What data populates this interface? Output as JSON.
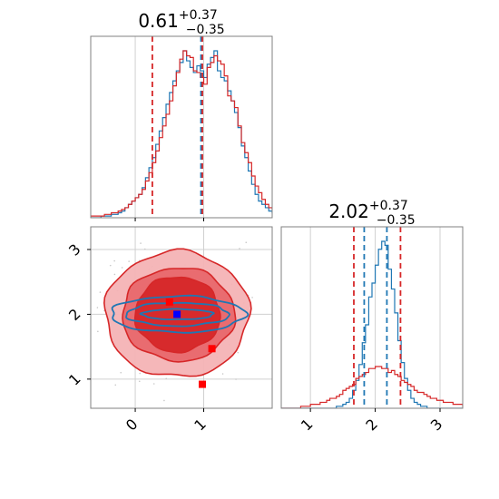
{
  "chart_data": {
    "type": "corner",
    "grid": true,
    "colors": {
      "red": "#d62728",
      "red_mid": "#e8676c",
      "red_light": "#f4b3b5",
      "blue": "#1f77b4",
      "marker_blue": "#0000ff",
      "marker_red": "#ff0000",
      "frame": "#808080",
      "grid": "#d0d0d0"
    },
    "param1": {
      "title_median": "0.61",
      "title_plus": "+0.37",
      "title_minus": "−0.35",
      "range": [
        -0.65,
        2.0
      ],
      "ticks": [
        0,
        1
      ],
      "tick_labels": [
        "0",
        "1"
      ],
      "red_hist": {
        "x0": -0.65,
        "bin": 0.05,
        "counts": [
          1,
          1,
          1,
          1,
          2,
          2,
          3,
          3,
          4,
          5,
          6,
          8,
          10,
          12,
          14,
          17,
          22,
          27,
          33,
          40,
          48,
          55,
          62,
          70,
          79,
          87,
          95,
          100,
          97,
          96,
          88,
          87,
          84,
          80,
          90,
          93,
          97,
          94,
          92,
          85,
          73,
          70,
          66,
          55,
          45,
          39,
          33,
          25,
          19,
          15,
          11,
          8,
          6,
          5,
          4,
          3,
          2,
          2,
          1,
          1
        ]
      },
      "blue_hist": {
        "x0": -0.65,
        "bin": 0.05,
        "counts": [
          0,
          0,
          0,
          1,
          1,
          1,
          2,
          2,
          3,
          4,
          6,
          8,
          10,
          12,
          14,
          18,
          24,
          30,
          36,
          44,
          52,
          60,
          68,
          75,
          82,
          88,
          93,
          100,
          94,
          90,
          87,
          91,
          88,
          84,
          92,
          96,
          100,
          88,
          84,
          82,
          76,
          70,
          63,
          54,
          43,
          36,
          28,
          20,
          14,
          10,
          8,
          6,
          4,
          3,
          2,
          1,
          1,
          0,
          0,
          0
        ]
      },
      "red_lines": [
        0.25,
        0.98
      ],
      "blue_lines": [
        0.96
      ]
    },
    "param2": {
      "title_median": "2.02",
      "title_plus": "+0.37",
      "title_minus": "−0.35",
      "range": [
        0.55,
        3.35
      ],
      "ticks": [
        1,
        2,
        3
      ],
      "tick_labels": [
        "1",
        "2",
        "3"
      ],
      "red_hist": {
        "x0": 0.55,
        "bin": 0.05,
        "counts": [
          0,
          0,
          0,
          0,
          0,
          0,
          1,
          1,
          1,
          2,
          2,
          2,
          3,
          3,
          4,
          5,
          5,
          6,
          7,
          9,
          10,
          11,
          12,
          15,
          16,
          17,
          18,
          20,
          20,
          21,
          21,
          20,
          20,
          18,
          19,
          17,
          16,
          14,
          13,
          12,
          11,
          9,
          8,
          8,
          7,
          6,
          5,
          5,
          4,
          4,
          3,
          3,
          3,
          2,
          2,
          2,
          1,
          1
        ]
      },
      "blue_hist": {
        "x0": 0.55,
        "bin": 0.05,
        "counts": [
          0,
          0,
          0,
          0,
          0,
          0,
          0,
          0,
          0,
          0,
          0,
          0,
          0,
          0,
          0,
          0,
          0,
          1,
          1,
          2,
          3,
          5,
          9,
          14,
          22,
          33,
          42,
          56,
          63,
          72,
          80,
          84,
          82,
          70,
          60,
          48,
          34,
          23,
          15,
          9,
          5,
          3,
          2,
          1,
          1,
          0,
          0,
          0,
          0,
          0,
          0,
          0,
          0,
          0,
          0,
          0,
          0,
          0
        ]
      },
      "red_lines": [
        1.67,
        2.39
      ],
      "blue_lines": [
        1.83,
        2.18
      ]
    },
    "joint": {
      "contours_red": [
        {
          "level": "outer",
          "cx": 0.61,
          "cy": 2.0,
          "rx": 1.05,
          "ry": 0.97,
          "fill": true
        },
        {
          "level": "middle",
          "cx": 0.63,
          "cy": 2.0,
          "rx": 0.82,
          "ry": 0.72,
          "fill": true
        },
        {
          "level": "inner",
          "cx": 0.62,
          "cy": 2.0,
          "rx": 0.62,
          "ry": 0.58,
          "fill": true
        }
      ],
      "contours_blue": [
        {
          "cx": 0.62,
          "cy": 2.0,
          "rx": 0.98,
          "ry": 0.28
        },
        {
          "cx": 0.62,
          "cy": 2.0,
          "rx": 0.75,
          "ry": 0.18
        },
        {
          "cx": 0.62,
          "cy": 2.0,
          "rx": 0.52,
          "ry": 0.08
        }
      ],
      "markers": [
        {
          "x": 0.61,
          "y": 2.0,
          "color": "blue"
        },
        {
          "x": 0.5,
          "y": 2.19,
          "color": "red"
        },
        {
          "x": 1.12,
          "y": 1.47,
          "color": "red"
        },
        {
          "x": 0.98,
          "y": 0.92,
          "color": "red"
        }
      ],
      "scatter_seed": 7
    }
  }
}
